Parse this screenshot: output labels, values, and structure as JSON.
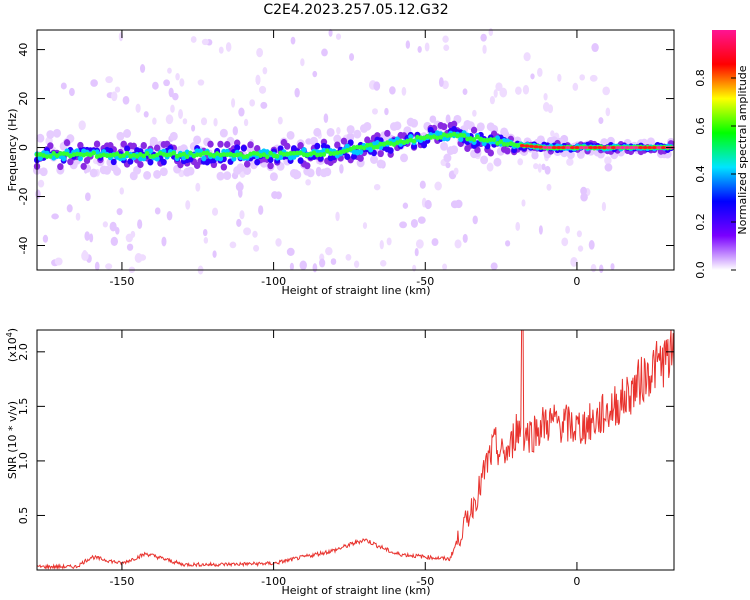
{
  "title": "C2E4.2023.257.05.12.G32",
  "chart_data": [
    {
      "type": "heatmap",
      "xlabel": "Height of straight line (km)",
      "ylabel": "Frequency (Hz)",
      "xlim": [
        -178,
        32
      ],
      "ylim": [
        -50,
        48
      ],
      "xticks": [
        -150,
        -100,
        -50,
        0
      ],
      "yticks": [
        -40,
        -20,
        0,
        20,
        40
      ],
      "xtick_labels": [
        "-150",
        "-100",
        "-50",
        "0"
      ],
      "ytick_labels": [
        "-40",
        "-20",
        "0",
        "20",
        "40"
      ],
      "ridge": {
        "x": [
          -178,
          -160,
          -140,
          -120,
          -100,
          -80,
          -70,
          -60,
          -50,
          -40,
          -30,
          -20,
          -10,
          0,
          10,
          20,
          32
        ],
        "frequency": [
          -3,
          -3,
          -3,
          -3,
          -3,
          -2,
          0,
          2,
          4,
          5,
          3,
          1,
          0,
          0,
          0,
          0,
          0
        ]
      },
      "colorbar": {
        "label": "Normalized spectral amplitude",
        "range": [
          0,
          1
        ],
        "ticks": [
          0.0,
          0.2,
          0.4,
          0.6,
          0.8
        ],
        "tick_labels": [
          "0.0",
          "0.2",
          "0.4",
          "0.6",
          "0.8"
        ],
        "colors": [
          "#ffffff",
          "#7a00ff",
          "#0000ff",
          "#00e5ff",
          "#00ff00",
          "#ffff00",
          "#ff0000",
          "#ff1493"
        ]
      }
    },
    {
      "type": "line",
      "xlabel": "Height of straight line (km)",
      "ylabel": "SNR (10 * v/v)",
      "y_multiplier": "(x10",
      "y_multiplier_exp": "4",
      "y_multiplier_close": ")",
      "xlim": [
        -178,
        32
      ],
      "ylim": [
        0,
        2.2
      ],
      "xticks": [
        -150,
        -100,
        -50,
        0
      ],
      "yticks": [
        0.5,
        1.0,
        1.5,
        2.0
      ],
      "xtick_labels": [
        "-150",
        "-100",
        "-50",
        "0"
      ],
      "ytick_labels": [
        "0.5",
        "1.0",
        "1.5",
        "2.0"
      ],
      "line_color": "#e8332e",
      "series": [
        {
          "x": [
            -178,
            -165,
            -160,
            -150,
            -142,
            -130,
            -120,
            -100,
            -90,
            -80,
            -70,
            -60,
            -50,
            -42,
            -38,
            -35,
            -32,
            -30,
            -27,
            -25,
            -22,
            -20,
            -18,
            -15,
            -10,
            -5,
            0,
            5,
            10,
            15,
            20,
            25,
            32
          ],
          "values": [
            0.03,
            0.03,
            0.12,
            0.06,
            0.15,
            0.05,
            0.05,
            0.06,
            0.12,
            0.18,
            0.28,
            0.15,
            0.12,
            0.1,
            0.35,
            0.55,
            0.75,
            0.95,
            1.15,
            1.05,
            1.1,
            1.3,
            1.25,
            1.25,
            1.35,
            1.35,
            1.3,
            1.35,
            1.45,
            1.55,
            1.7,
            1.85,
            1.98
          ]
        }
      ],
      "peak": {
        "x": -18,
        "y": 2.2
      }
    }
  ]
}
